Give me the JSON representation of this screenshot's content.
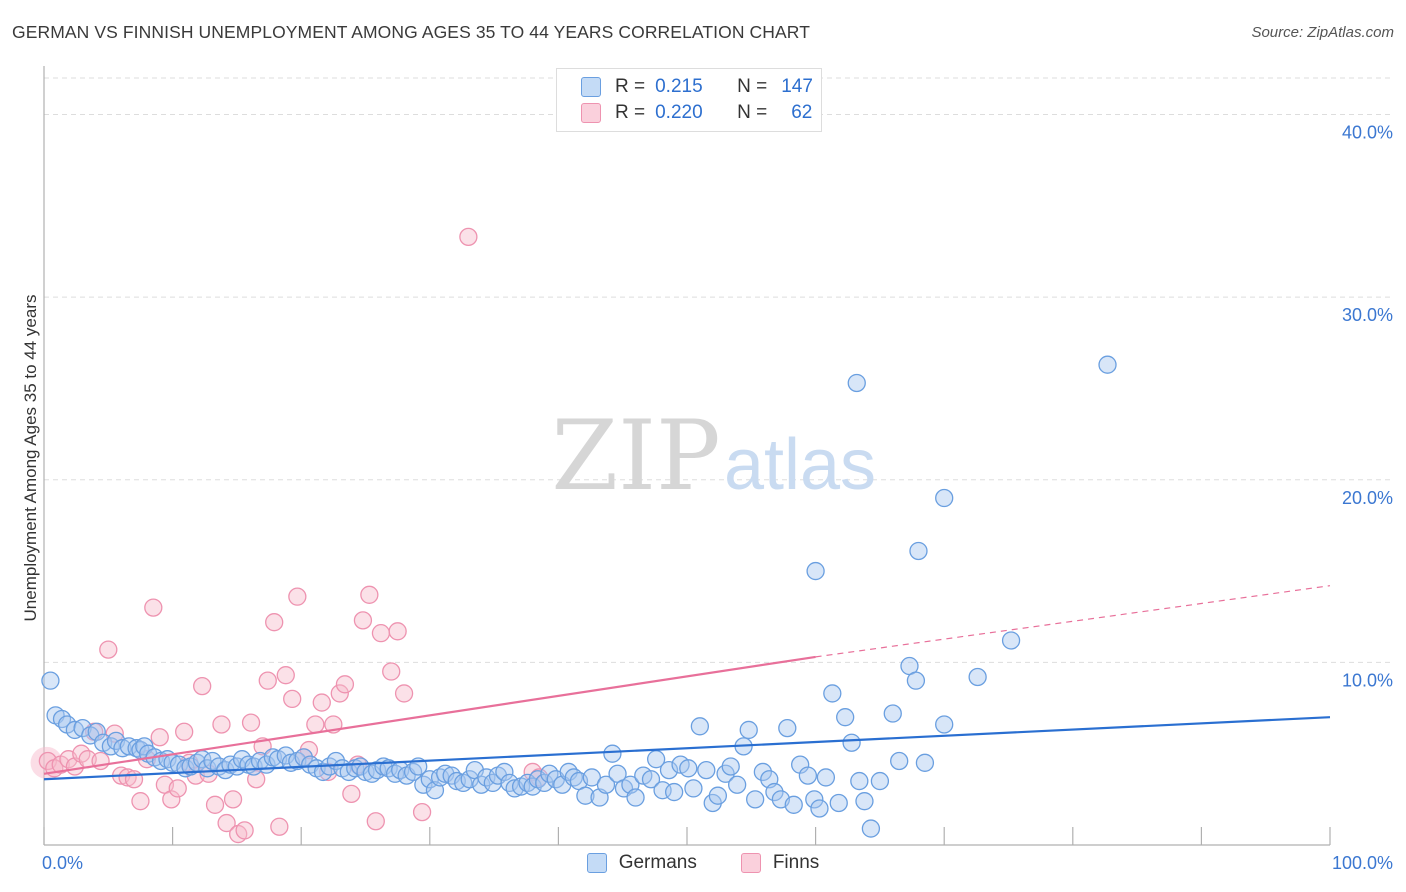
{
  "header": {
    "title": "GERMAN VS FINNISH UNEMPLOYMENT AMONG AGES 35 TO 44 YEARS CORRELATION CHART",
    "source": "Source: ZipAtlas.com"
  },
  "watermark": {
    "zip": "ZIP",
    "atlas": "atlas"
  },
  "legend": {
    "rows": [
      {
        "r_label": "R =",
        "r_value": "0.215",
        "n_label": "N =",
        "n_value": "147"
      },
      {
        "r_label": "R =",
        "r_value": "0.220",
        "n_label": "N =",
        "n_value": "62"
      }
    ]
  },
  "colors": {
    "germans_fill": "#a9c8f0",
    "germans_stroke": "#6a9fe0",
    "germans_line": "#2a6fd1",
    "finns_fill": "#f7bccd",
    "finns_stroke": "#ee93b0",
    "finns_line": "#e8709a",
    "tick_label": "#3b77d1",
    "grid": "#dddddd"
  },
  "chart_data": {
    "type": "scatter",
    "title": "GERMAN VS FINNISH UNEMPLOYMENT AMONG AGES 35 TO 44 YEARS CORRELATION CHART",
    "xlabel": "",
    "ylabel": "Unemployment Among Ages 35 to 44 years",
    "xlim": [
      0,
      100
    ],
    "ylim": [
      0,
      42
    ],
    "x_tick_labels": [
      "0.0%",
      "100.0%"
    ],
    "y_ticks": [
      10,
      20,
      30,
      40
    ],
    "y_tick_labels": [
      "10.0%",
      "20.0%",
      "30.0%",
      "40.0%"
    ],
    "grid": true,
    "legend_position": "bottom",
    "series": [
      {
        "name": "Germans",
        "r": 0.215,
        "n": 147,
        "trend": {
          "x": [
            0,
            100
          ],
          "y": [
            3.6,
            7.0
          ]
        },
        "points": [
          [
            0.5,
            9.0
          ],
          [
            0.9,
            7.1
          ],
          [
            1.4,
            6.9
          ],
          [
            1.8,
            6.6
          ],
          [
            2.4,
            6.3
          ],
          [
            3.0,
            6.4
          ],
          [
            3.6,
            6.0
          ],
          [
            4.1,
            6.2
          ],
          [
            4.6,
            5.6
          ],
          [
            5.2,
            5.4
          ],
          [
            5.6,
            5.7
          ],
          [
            6.1,
            5.3
          ],
          [
            6.6,
            5.4
          ],
          [
            7.2,
            5.3
          ],
          [
            7.5,
            5.2
          ],
          [
            7.8,
            5.4
          ],
          [
            8.1,
            5.0
          ],
          [
            8.6,
            4.8
          ],
          [
            9.1,
            4.6
          ],
          [
            9.6,
            4.7
          ],
          [
            10.0,
            4.5
          ],
          [
            10.5,
            4.4
          ],
          [
            11.0,
            4.2
          ],
          [
            11.4,
            4.3
          ],
          [
            11.9,
            4.5
          ],
          [
            12.3,
            4.7
          ],
          [
            12.7,
            4.2
          ],
          [
            13.1,
            4.6
          ],
          [
            13.6,
            4.3
          ],
          [
            14.1,
            4.1
          ],
          [
            14.5,
            4.4
          ],
          [
            15.0,
            4.3
          ],
          [
            15.4,
            4.7
          ],
          [
            15.9,
            4.4
          ],
          [
            16.3,
            4.3
          ],
          [
            16.8,
            4.6
          ],
          [
            17.3,
            4.4
          ],
          [
            17.8,
            4.8
          ],
          [
            18.2,
            4.7
          ],
          [
            18.8,
            4.9
          ],
          [
            19.2,
            4.5
          ],
          [
            19.7,
            4.6
          ],
          [
            20.2,
            4.8
          ],
          [
            20.7,
            4.4
          ],
          [
            21.2,
            4.2
          ],
          [
            21.7,
            4.0
          ],
          [
            22.2,
            4.3
          ],
          [
            22.7,
            4.6
          ],
          [
            23.2,
            4.2
          ],
          [
            23.7,
            4.0
          ],
          [
            24.2,
            4.2
          ],
          [
            24.6,
            4.3
          ],
          [
            25.0,
            4.0
          ],
          [
            25.5,
            3.9
          ],
          [
            25.9,
            4.1
          ],
          [
            26.4,
            4.3
          ],
          [
            26.8,
            4.2
          ],
          [
            27.3,
            3.9
          ],
          [
            27.7,
            4.1
          ],
          [
            28.2,
            3.8
          ],
          [
            28.7,
            4.0
          ],
          [
            29.1,
            4.3
          ],
          [
            29.5,
            3.3
          ],
          [
            30.0,
            3.6
          ],
          [
            30.4,
            3.0
          ],
          [
            30.8,
            3.7
          ],
          [
            31.2,
            3.9
          ],
          [
            31.7,
            3.8
          ],
          [
            32.1,
            3.5
          ],
          [
            32.6,
            3.4
          ],
          [
            33.1,
            3.6
          ],
          [
            33.5,
            4.1
          ],
          [
            34.0,
            3.3
          ],
          [
            34.4,
            3.7
          ],
          [
            34.9,
            3.4
          ],
          [
            35.3,
            3.8
          ],
          [
            35.8,
            4.0
          ],
          [
            36.2,
            3.4
          ],
          [
            36.6,
            3.1
          ],
          [
            37.1,
            3.2
          ],
          [
            37.6,
            3.4
          ],
          [
            38.0,
            3.2
          ],
          [
            38.4,
            3.6
          ],
          [
            38.9,
            3.4
          ],
          [
            39.3,
            3.9
          ],
          [
            39.8,
            3.6
          ],
          [
            40.3,
            3.3
          ],
          [
            40.8,
            4.0
          ],
          [
            41.2,
            3.7
          ],
          [
            41.6,
            3.5
          ],
          [
            42.1,
            2.7
          ],
          [
            42.6,
            3.7
          ],
          [
            43.2,
            2.6
          ],
          [
            43.7,
            3.3
          ],
          [
            44.2,
            5.0
          ],
          [
            44.6,
            3.9
          ],
          [
            45.1,
            3.1
          ],
          [
            45.6,
            3.3
          ],
          [
            46.0,
            2.6
          ],
          [
            46.6,
            3.8
          ],
          [
            47.2,
            3.6
          ],
          [
            47.6,
            4.7
          ],
          [
            48.1,
            3.0
          ],
          [
            48.6,
            4.1
          ],
          [
            49.0,
            2.9
          ],
          [
            49.5,
            4.4
          ],
          [
            50.1,
            4.2
          ],
          [
            50.5,
            3.1
          ],
          [
            51.0,
            6.5
          ],
          [
            51.5,
            4.1
          ],
          [
            52.0,
            2.3
          ],
          [
            52.4,
            2.7
          ],
          [
            53.0,
            3.9
          ],
          [
            53.4,
            4.3
          ],
          [
            53.9,
            3.3
          ],
          [
            54.4,
            5.4
          ],
          [
            54.8,
            6.3
          ],
          [
            55.3,
            2.5
          ],
          [
            55.9,
            4.0
          ],
          [
            56.4,
            3.6
          ],
          [
            56.8,
            2.9
          ],
          [
            57.3,
            2.5
          ],
          [
            57.8,
            6.4
          ],
          [
            58.3,
            2.2
          ],
          [
            58.8,
            4.4
          ],
          [
            59.4,
            3.8
          ],
          [
            59.9,
            2.5
          ],
          [
            60.3,
            2.0
          ],
          [
            60.8,
            3.7
          ],
          [
            61.3,
            8.3
          ],
          [
            61.8,
            2.3
          ],
          [
            62.3,
            7.0
          ],
          [
            62.8,
            5.6
          ],
          [
            63.4,
            3.5
          ],
          [
            63.8,
            2.4
          ],
          [
            64.3,
            0.9
          ],
          [
            65.0,
            3.5
          ],
          [
            66.0,
            7.2
          ],
          [
            66.5,
            4.6
          ],
          [
            67.3,
            9.8
          ],
          [
            67.8,
            9.0
          ],
          [
            68.5,
            4.5
          ],
          [
            70.0,
            6.6
          ],
          [
            72.6,
            9.2
          ],
          [
            75.2,
            11.2
          ],
          [
            68.0,
            16.1
          ],
          [
            70.0,
            19.0
          ],
          [
            63.2,
            25.3
          ],
          [
            82.7,
            26.3
          ],
          [
            60.0,
            15.0
          ]
        ]
      },
      {
        "name": "Finns",
        "r": 0.22,
        "n": 62,
        "trend": {
          "x": [
            0,
            60
          ],
          "y": [
            3.9,
            10.3
          ]
        },
        "dash_extension": {
          "x": [
            60,
            100
          ],
          "y": [
            10.3,
            14.2
          ]
        },
        "points": [
          [
            0.3,
            4.6
          ],
          [
            0.8,
            4.2
          ],
          [
            1.3,
            4.4
          ],
          [
            1.9,
            4.7
          ],
          [
            2.4,
            4.3
          ],
          [
            2.9,
            5.0
          ],
          [
            3.4,
            4.7
          ],
          [
            3.9,
            6.2
          ],
          [
            4.4,
            4.6
          ],
          [
            5.0,
            10.7
          ],
          [
            5.5,
            6.1
          ],
          [
            6.0,
            3.8
          ],
          [
            6.5,
            3.7
          ],
          [
            7.0,
            3.6
          ],
          [
            7.5,
            2.4
          ],
          [
            8.0,
            4.7
          ],
          [
            8.5,
            13.0
          ],
          [
            9.0,
            5.9
          ],
          [
            9.4,
            3.3
          ],
          [
            9.9,
            2.5
          ],
          [
            10.4,
            3.1
          ],
          [
            10.9,
            6.2
          ],
          [
            11.3,
            4.5
          ],
          [
            11.8,
            3.8
          ],
          [
            12.3,
            8.7
          ],
          [
            12.8,
            3.9
          ],
          [
            13.3,
            2.2
          ],
          [
            13.8,
            6.6
          ],
          [
            14.2,
            1.2
          ],
          [
            14.7,
            2.5
          ],
          [
            15.1,
            0.6
          ],
          [
            15.6,
            0.8
          ],
          [
            16.1,
            6.7
          ],
          [
            16.5,
            3.6
          ],
          [
            17.0,
            5.4
          ],
          [
            17.4,
            9.0
          ],
          [
            17.9,
            12.2
          ],
          [
            18.3,
            1.0
          ],
          [
            18.8,
            9.3
          ],
          [
            19.3,
            8.0
          ],
          [
            19.7,
            13.6
          ],
          [
            20.2,
            4.8
          ],
          [
            20.6,
            5.2
          ],
          [
            21.1,
            6.6
          ],
          [
            21.6,
            7.8
          ],
          [
            22.1,
            4.0
          ],
          [
            22.5,
            6.6
          ],
          [
            23.0,
            8.3
          ],
          [
            23.4,
            8.8
          ],
          [
            23.9,
            2.8
          ],
          [
            24.4,
            4.4
          ],
          [
            24.8,
            12.3
          ],
          [
            25.3,
            13.7
          ],
          [
            25.8,
            1.3
          ],
          [
            26.2,
            11.6
          ],
          [
            27.0,
            9.5
          ],
          [
            27.5,
            11.7
          ],
          [
            28.0,
            8.3
          ],
          [
            29.4,
            1.8
          ],
          [
            33.0,
            33.3
          ],
          [
            38.0,
            4.0
          ],
          [
            38.5,
            3.7
          ]
        ]
      }
    ]
  },
  "bottom_legend": [
    "Germans",
    "Finns"
  ]
}
